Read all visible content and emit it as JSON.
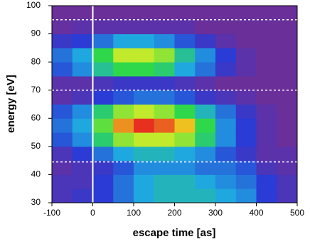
{
  "chart_data": {
    "type": "heatmap",
    "x_label": "escape time [as]",
    "y_label": "energy [eV]",
    "xbins": [
      -100,
      -50,
      0,
      50,
      100,
      150,
      200,
      250,
      300,
      350,
      400,
      450,
      500
    ],
    "ybins": [
      30,
      35,
      40,
      45,
      50,
      55,
      60,
      65,
      70,
      75,
      80,
      85,
      90,
      95,
      100
    ],
    "values": [
      [
        0.1,
        0.15,
        0.2,
        0.3,
        0.4,
        0.45,
        0.45,
        0.45,
        0.4,
        0.35,
        0.2,
        0.1
      ],
      [
        0.1,
        0.1,
        0.2,
        0.3,
        0.4,
        0.45,
        0.45,
        0.4,
        0.35,
        0.3,
        0.2,
        0.1
      ],
      [
        0.05,
        0.1,
        0.15,
        0.25,
        0.35,
        0.35,
        0.35,
        0.3,
        0.3,
        0.25,
        0.1,
        0.05
      ],
      [
        0.1,
        0.2,
        0.3,
        0.4,
        0.45,
        0.45,
        0.4,
        0.35,
        0.25,
        0.15,
        0.05,
        0.05
      ],
      [
        0.25,
        0.35,
        0.55,
        0.7,
        0.75,
        0.75,
        0.7,
        0.55,
        0.35,
        0.2,
        0.05,
        0
      ],
      [
        0.3,
        0.4,
        0.65,
        0.9,
        1,
        0.95,
        0.85,
        0.6,
        0.35,
        0.2,
        0.05,
        0
      ],
      [
        0.25,
        0.35,
        0.55,
        0.7,
        0.75,
        0.7,
        0.6,
        0.45,
        0.3,
        0.15,
        0.05,
        0
      ],
      [
        0.05,
        0.1,
        0.2,
        0.25,
        0.3,
        0.3,
        0.25,
        0.15,
        0.1,
        0.05,
        0,
        0
      ],
      [
        0.05,
        0.05,
        0.1,
        0.15,
        0.15,
        0.15,
        0.1,
        0.05,
        0,
        0,
        0,
        0
      ],
      [
        0.25,
        0.35,
        0.5,
        0.6,
        0.6,
        0.55,
        0.4,
        0.3,
        0.15,
        0.05,
        0,
        0
      ],
      [
        0.3,
        0.4,
        0.6,
        0.75,
        0.75,
        0.7,
        0.5,
        0.35,
        0.2,
        0.05,
        0,
        0
      ],
      [
        0.15,
        0.2,
        0.3,
        0.4,
        0.4,
        0.35,
        0.25,
        0.15,
        0.05,
        0,
        0,
        0
      ],
      [
        0.02,
        0.05,
        0.05,
        0.05,
        0.05,
        0.05,
        0.05,
        0,
        0,
        0,
        0,
        0
      ],
      [
        0,
        0,
        0,
        0,
        0,
        0,
        0,
        0,
        0,
        0,
        0,
        0
      ]
    ],
    "zlim": [
      0,
      1
    ],
    "colormap": [
      "#6b2f9a",
      "#2a3bd6",
      "#1fa8e0",
      "#2fd84a",
      "#f0f020",
      "#e83020"
    ],
    "xlim": [
      -100,
      500
    ],
    "xticks": [
      -100,
      0,
      100,
      200,
      300,
      400,
      500
    ],
    "ylim": [
      30,
      100
    ],
    "yticks": [
      30,
      40,
      50,
      60,
      70,
      80,
      90,
      100
    ],
    "hlines": [
      95,
      70,
      44.5
    ],
    "vlines": [
      0
    ]
  }
}
